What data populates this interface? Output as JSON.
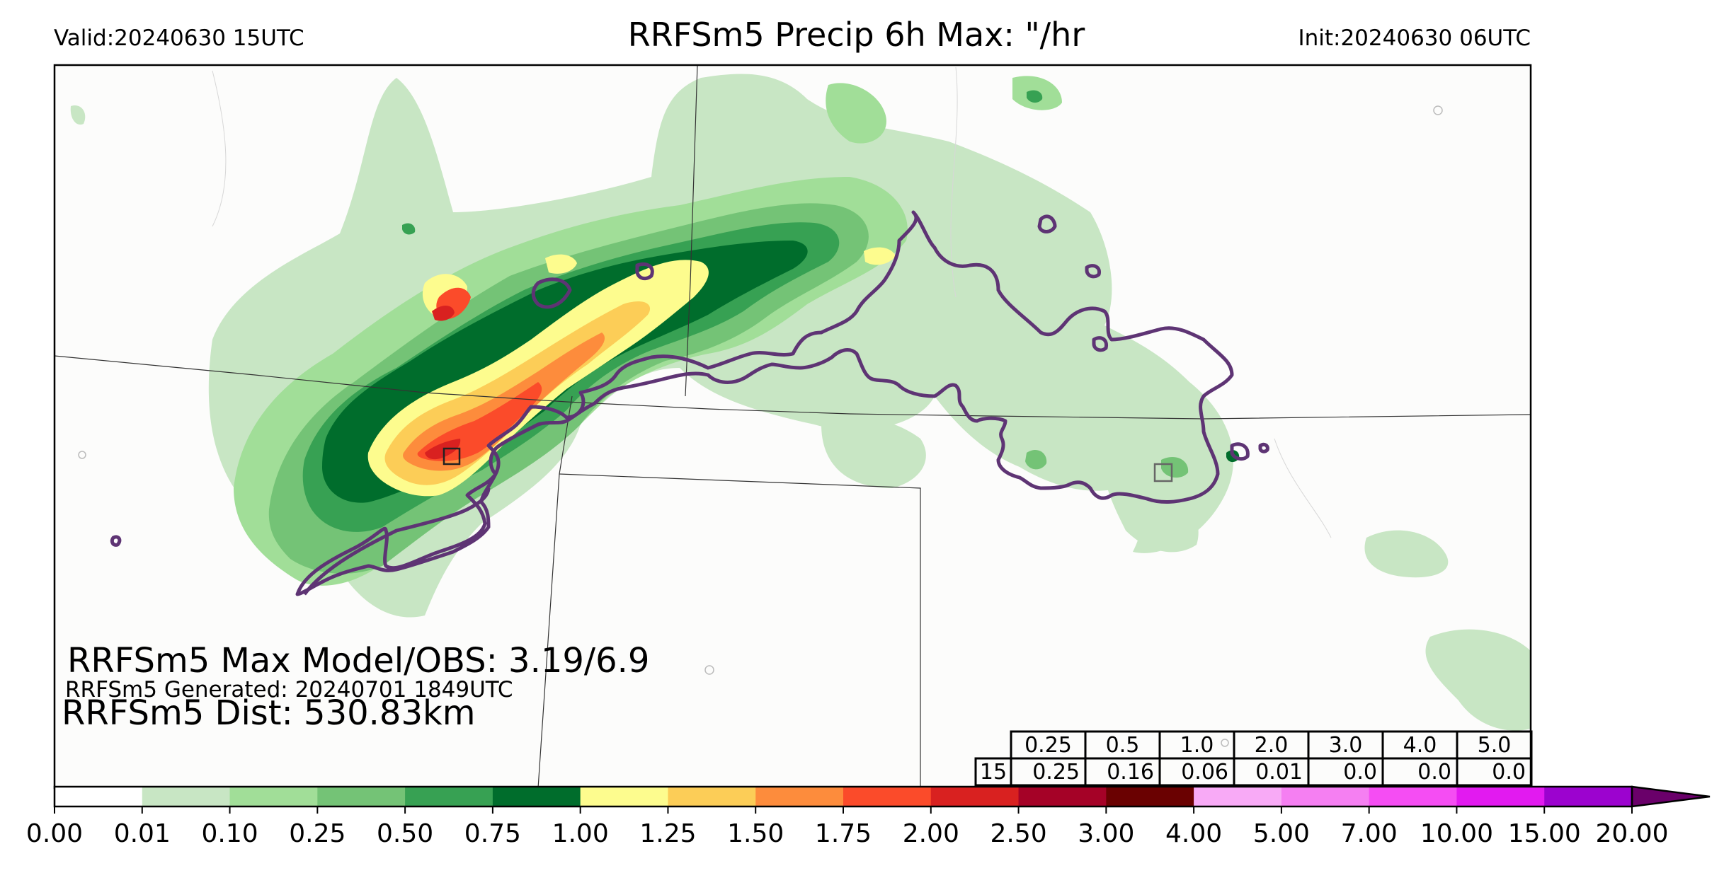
{
  "header": {
    "valid": "Valid:20240630 15UTC",
    "title": "RRFSm5 Precip 6h Max: \"/hr",
    "init": "Init:20240630 06UTC"
  },
  "stats": {
    "max_line": "RRFSm5 Max Model/OBS: 3.19/6.9",
    "generated_line": "RRFSm5 Generated: 20240701 1849UTC",
    "dist_line": "RRFSm5 Dist: 530.83km"
  },
  "threshold_table": {
    "thresholds": [
      "0.25",
      "0.5",
      "1.0",
      "2.0",
      "3.0",
      "4.0",
      "5.0"
    ],
    "row_label": "15",
    "values": [
      "0.25",
      "0.16",
      "0.06",
      "0.01",
      "0.0",
      "0.0",
      "0.0"
    ]
  },
  "colorbar": {
    "ticks": [
      "0.00",
      "0.01",
      "0.10",
      "0.25",
      "0.50",
      "0.75",
      "1.00",
      "1.25",
      "1.50",
      "1.75",
      "2.00",
      "2.50",
      "3.00",
      "4.00",
      "5.00",
      "7.00",
      "10.00",
      "15.00",
      "20.00"
    ],
    "colors": [
      "#ffffff",
      "#c8e6c4",
      "#a1de98",
      "#74c376",
      "#37a153",
      "#006d2c",
      "#fdfc8e",
      "#fccd57",
      "#fd8c3c",
      "#fb4b2a",
      "#d92120",
      "#a50227",
      "#6a0101",
      "#f8aaf6",
      "#f57ff2",
      "#f54df3",
      "#e21af0",
      "#9c03cf"
    ],
    "extend_color": "#6a006a"
  },
  "map_colors": {
    "obs_contour": "#5e3474",
    "boundary": "#333333"
  }
}
